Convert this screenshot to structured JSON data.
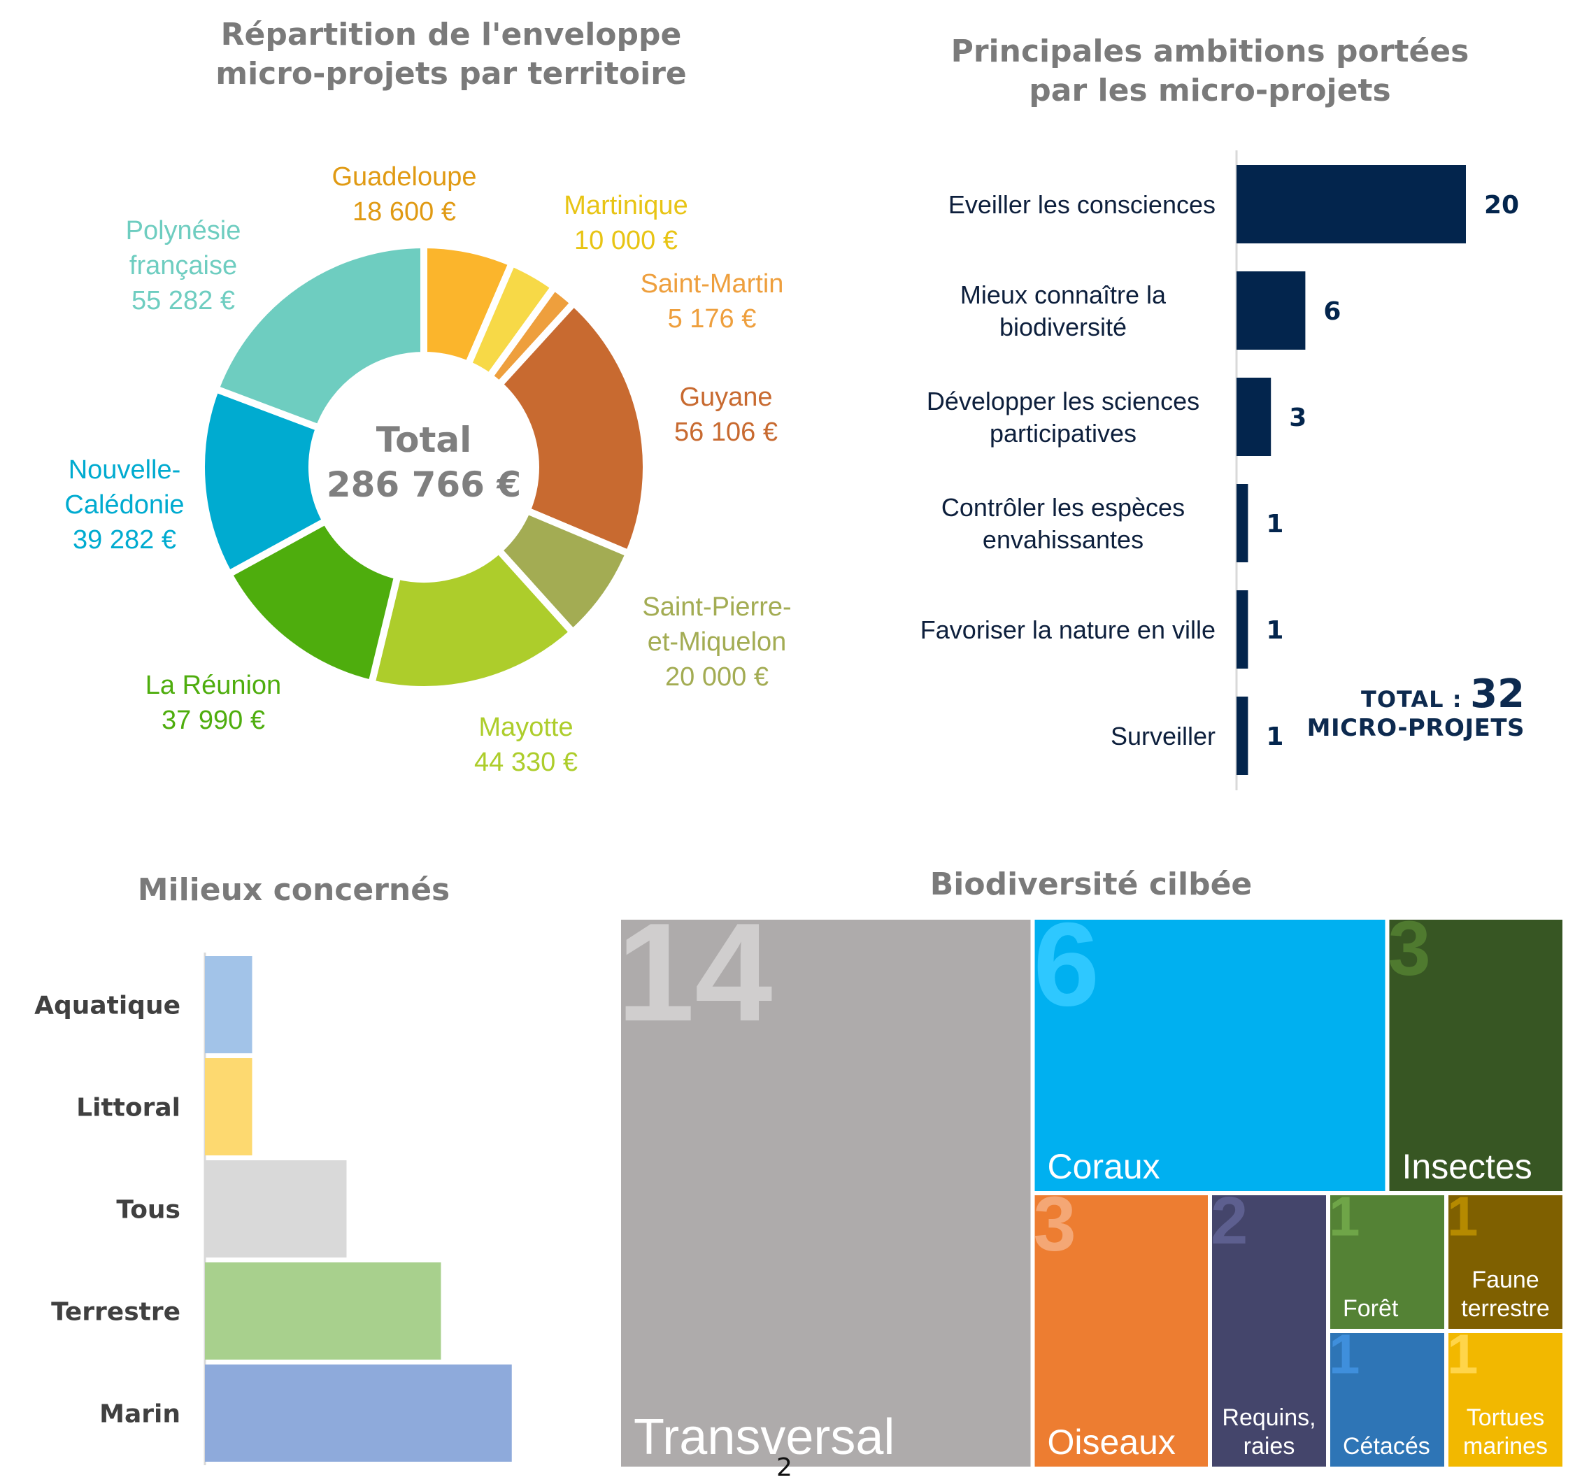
{
  "page_number": "2",
  "chart_data": [
    {
      "type": "pie",
      "title": "Répartition de l'enveloppe micro-projets par territoire",
      "center_label": "Total",
      "center_value": "286 766 €",
      "slices": [
        {
          "name": "Guadeloupe",
          "value": 18600,
          "value_label": "18 600 €",
          "color": "#fbb52c"
        },
        {
          "name": "Martinique",
          "value": 10000,
          "value_label": "10 000 €",
          "color": "#f7d947"
        },
        {
          "name": "Saint-Martin",
          "value": 5176,
          "value_label": "5 176 €",
          "color": "#ee9f3d"
        },
        {
          "name": "Guyane",
          "value": 56106,
          "value_label": "56 106 €",
          "color": "#c86a30"
        },
        {
          "name": "Saint-Pierre-et-Miquelon",
          "value": 20000,
          "value_label": "20 000 €",
          "color": "#a3ac53"
        },
        {
          "name": "Mayotte",
          "value": 44330,
          "value_label": "44 330 €",
          "color": "#adcd2b"
        },
        {
          "name": "La Réunion",
          "value": 37990,
          "value_label": "37 990 €",
          "color": "#4ead0d"
        },
        {
          "name": "Nouvelle-Calédonie",
          "value": 39282,
          "value_label": "39 282 €",
          "color": "#00abd0"
        },
        {
          "name": "Polynésie française",
          "value": 55282,
          "value_label": "55 282 €",
          "color": "#6ecdc0"
        }
      ],
      "label_colors": [
        "#e09a13",
        "#e8c414",
        "#ee9f3d",
        "#c86a30",
        "#a3ac53",
        "#adcd2b",
        "#4ead0d",
        "#00abd0",
        "#6ecdc0"
      ],
      "label_lines": [
        [
          "Guadeloupe",
          "18 600 €"
        ],
        [
          "Martinique",
          "10 000 €"
        ],
        [
          "Saint-Martin",
          "5 176 €"
        ],
        [
          "Guyane",
          "56 106 €"
        ],
        [
          "Saint-Pierre-",
          "et-Miquelon",
          "20 000 €"
        ],
        [
          "Mayotte",
          "44 330 €"
        ],
        [
          "La Réunion",
          "37 990 €"
        ],
        [
          "Nouvelle-",
          "Calédonie",
          "39 282 €"
        ],
        [
          "Polynésie",
          "française",
          "55 282 €"
        ]
      ]
    },
    {
      "type": "bar",
      "orientation": "horizontal",
      "title": "Principales ambitions portées par les micro-projets",
      "categories": [
        [
          "Eveiller les consciences"
        ],
        [
          "Mieux connaître la",
          "biodiversité"
        ],
        [
          "Développer les sciences",
          "participatives"
        ],
        [
          "Contrôler les espèces",
          "envahissantes"
        ],
        [
          "Favoriser la nature en ville"
        ],
        [
          "Surveiller"
        ]
      ],
      "values": [
        20,
        6,
        3,
        1,
        1,
        1
      ],
      "xlim": [
        0,
        20
      ],
      "bar_color": "#03254d",
      "total_label": "TOTAL :",
      "total_value": "32",
      "total_unit": "MICRO-PROJETS"
    },
    {
      "type": "bar",
      "orientation": "horizontal",
      "title": "Milieux concernés",
      "categories": [
        "Aquatique",
        "Littoral",
        "Tous",
        "Terrestre",
        "Marin"
      ],
      "values": [
        1,
        1,
        3,
        5,
        6.5
      ],
      "colors": [
        "#a2c3e8",
        "#fdd970",
        "#d9d9d9",
        "#a8d08d",
        "#8eaadb"
      ]
    },
    {
      "type": "treemap",
      "title": "Biodiversité cilbée",
      "items": [
        {
          "name": "Transversal",
          "value": 14,
          "value_label": "14",
          "color": "#aeabab",
          "number_color": "#d0cece",
          "label_color": "#ffffff"
        },
        {
          "name": "Coraux",
          "value": 6,
          "value_label": "6",
          "color": "#00b0f0",
          "number_color": "#2ec8ff",
          "label_color": "#ffffff"
        },
        {
          "name": "Insectes",
          "value": 3,
          "value_label": "3",
          "color": "#375623",
          "number_color": "#4f7a2f",
          "label_color": "#ffffff"
        },
        {
          "name": "Oiseaux",
          "value": 3,
          "value_label": "3",
          "color": "#ed7d31",
          "number_color": "#f4a775",
          "label_color": "#ffffff"
        },
        {
          "name": "Requins, raies",
          "value": 2,
          "value_label": "2",
          "color": "#44456b",
          "number_color": "#5d5f8f",
          "label_color": "#ffffff"
        },
        {
          "name": "Forêt",
          "value": 1,
          "value_label": "1",
          "color": "#548235",
          "number_color": "#6fa548",
          "label_color": "#ffffff"
        },
        {
          "name": "Faune terrestre",
          "value": 1,
          "value_label": "1",
          "color": "#7f6000",
          "number_color": "#b58a00",
          "label_color": "#ffffff"
        },
        {
          "name": "Cétacés",
          "value": 1,
          "value_label": "1",
          "color": "#2e75b6",
          "number_color": "#3f8fdc",
          "label_color": "#ffffff"
        },
        {
          "name": "Tortues marines",
          "value": 1,
          "value_label": "1",
          "color": "#f2b800",
          "number_color": "#ffd54a",
          "label_color": "#ffffff"
        }
      ]
    }
  ]
}
